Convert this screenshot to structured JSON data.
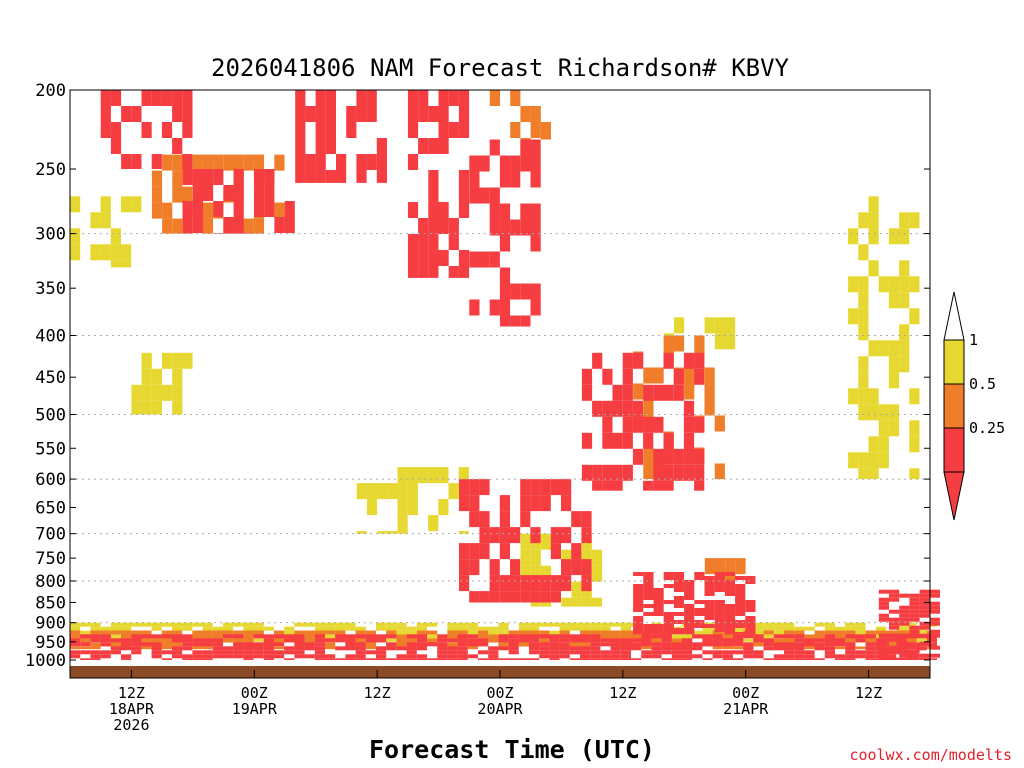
{
  "chart_data": {
    "type": "heatmap",
    "title": "2026041806 NAM Forecast Richardson# KBVY",
    "xlabel": "Forecast Time (UTC)",
    "ylabel": "",
    "credit": "coolwx.com/modelts",
    "y_axis": {
      "scale": "pressure",
      "range_hPa": [
        1000,
        200
      ],
      "ticks": [
        200,
        250,
        300,
        350,
        400,
        450,
        500,
        550,
        600,
        650,
        700,
        750,
        800,
        850,
        900,
        950,
        1000
      ],
      "tick_labels": [
        "200",
        "250",
        "300",
        "350",
        "400",
        "450",
        "500",
        "550",
        "600",
        "650",
        "700",
        "750",
        "800",
        "850",
        "900",
        "950",
        "1000"
      ],
      "gridlines": [
        300,
        400,
        500,
        600,
        700,
        800,
        900
      ]
    },
    "x_axis": {
      "range_hours": [
        0,
        84
      ],
      "ticks": [
        {
          "hour": 6,
          "lines": [
            "12Z",
            "18APR",
            "2026"
          ]
        },
        {
          "hour": 18,
          "lines": [
            "00Z",
            "19APR"
          ]
        },
        {
          "hour": 30,
          "lines": [
            "12Z"
          ]
        },
        {
          "hour": 42,
          "lines": [
            "00Z",
            "20APR"
          ]
        },
        {
          "hour": 54,
          "lines": [
            "12Z"
          ]
        },
        {
          "hour": 66,
          "lines": [
            "00Z",
            "21APR"
          ]
        },
        {
          "hour": 78,
          "lines": [
            "12Z"
          ]
        }
      ]
    },
    "colorbar": {
      "levels": [
        {
          "label": "1",
          "value": 1
        },
        {
          "label": "0.5",
          "value": 0.5
        },
        {
          "label": "0.25",
          "value": 0.25
        }
      ],
      "bins": [
        {
          "range": "0.5-1",
          "color": "#e6d831"
        },
        {
          "range": "0.25-0.5",
          "color": "#ef7d2a"
        },
        {
          "range": "<0.25",
          "color": "#f63d41"
        }
      ],
      "extend_top_color": "#ffffff",
      "extend_bottom_color": "#f63d41"
    },
    "colors": {
      "low": "#f63d41",
      "mid": "#ef7d2a",
      "high": "#e6d831",
      "ground": "#8b4a26",
      "grid": "#aaaaaa"
    },
    "series": [
      {
        "name": "Ri < 0.25",
        "color": "#f63d41",
        "regions": [
          {
            "t": [
              3,
              11
            ],
            "p": [
              200,
              250
            ],
            "note": "upper level block"
          },
          {
            "t": [
              11,
              21
            ],
            "p": [
              250,
              300
            ],
            "note": "upper level patches"
          },
          {
            "t": [
              22,
              30
            ],
            "p": [
              200,
              260
            ]
          },
          {
            "t": [
              33,
              38
            ],
            "p": [
              200,
              340
            ]
          },
          {
            "t": [
              39,
              45
            ],
            "p": [
              230,
              390
            ]
          },
          {
            "t": [
              38,
              50
            ],
            "p": [
              600,
              850
            ],
            "note": "mid-level slanted band lower half"
          },
          {
            "t": [
              50,
              61
            ],
            "p": [
              420,
              620
            ],
            "note": "slanted band upper half"
          },
          {
            "t": [
              0,
              84
            ],
            "p": [
              930,
              1000
            ],
            "note": "boundary layer"
          },
          {
            "t": [
              55,
              66
            ],
            "p": [
              780,
              930
            ]
          },
          {
            "t": [
              79,
              84
            ],
            "p": [
              820,
              1000
            ]
          }
        ]
      },
      {
        "name": "0.25 <= Ri < 0.5",
        "color": "#ef7d2a",
        "regions": [
          {
            "t": [
              8,
              20
            ],
            "p": [
              240,
              300
            ]
          },
          {
            "t": [
              41,
              46
            ],
            "p": [
              200,
              230
            ]
          },
          {
            "t": [
              55,
              63
            ],
            "p": [
              400,
              600
            ]
          },
          {
            "t": [
              62,
              66
            ],
            "p": [
              750,
              800
            ]
          },
          {
            "t": [
              0,
              84
            ],
            "p": [
              920,
              970
            ]
          }
        ]
      },
      {
        "name": "0.5 <= Ri < 1",
        "color": "#e6d831",
        "regions": [
          {
            "t": [
              0,
              6
            ],
            "p": [
              270,
              330
            ]
          },
          {
            "t": [
              6,
              11
            ],
            "p": [
              420,
              500
            ]
          },
          {
            "t": [
              28,
              38
            ],
            "p": [
              580,
              700
            ]
          },
          {
            "t": [
              58,
              64
            ],
            "p": [
              380,
              420
            ]
          },
          {
            "t": [
              76,
              82
            ],
            "p": [
              270,
              600
            ]
          },
          {
            "t": [
              44,
              52
            ],
            "p": [
              700,
              860
            ]
          },
          {
            "t": [
              0,
              84
            ],
            "p": [
              900,
              950
            ]
          }
        ]
      }
    ]
  }
}
